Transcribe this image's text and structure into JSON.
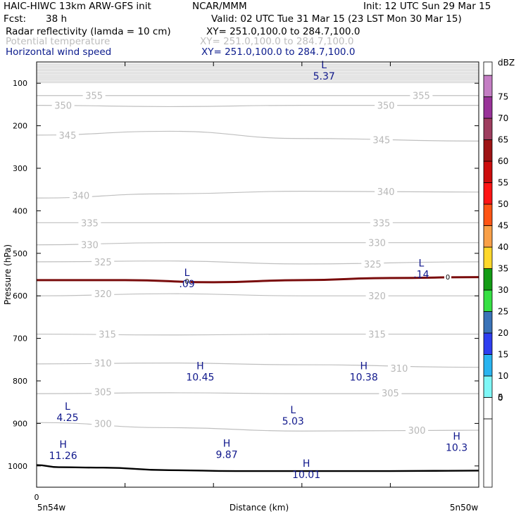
{
  "header": {
    "model": "HAIC-HIWC 13km ARW-GFS init",
    "org": "NCAR/MMM",
    "init": "Init: 12 UTC Sun 29 Mar 15",
    "fcst_label": "Fcst:",
    "fcst_value": "38 h",
    "valid": "Valid: 02 UTC Tue 31 Mar 15 (23 LST Mon 30 Mar 15)"
  },
  "fields": [
    {
      "label": "Radar reflectivity (lamda = 10 cm)",
      "xy": "XY= 251.0,100.0 to 284.7,100.0",
      "color": "#000000"
    },
    {
      "label": "Potential temperature",
      "xy": "XY= 251.0,100.0 to 284.7,100.0",
      "color": "#bdbdbd"
    },
    {
      "label": "Horizontal wind speed",
      "xy": "XY= 251.0,100.0 to 284.7,100.0",
      "color": "#0a1a8c"
    }
  ],
  "chart_data": {
    "type": "cross-section",
    "xlabel": "Distance (km)",
    "ylabel": "Pressure (hPa)",
    "x_start_label": "0",
    "x_end_labels": [
      "5n54w",
      "5n50w"
    ],
    "ylim": [
      50,
      1050
    ],
    "y_scale": "linear",
    "y_ticks": [
      100,
      200,
      300,
      400,
      500,
      600,
      700,
      800,
      900,
      1000
    ],
    "x_tick_count": 5,
    "theta_contours": [
      {
        "level": "355",
        "x": [
          0,
          0.3,
          0.6,
          1
        ],
        "p": [
          129,
          129,
          129,
          129
        ],
        "labels": [
          [
            0.13,
            129
          ],
          [
            0.87,
            129
          ]
        ]
      },
      {
        "level": "350",
        "x": [
          0,
          0.3,
          0.6,
          1
        ],
        "p": [
          152,
          155,
          152,
          152
        ],
        "labels": [
          [
            0.06,
            152
          ],
          [
            0.79,
            152
          ]
        ]
      },
      {
        "level": "345",
        "x": [
          0,
          0.3,
          0.6,
          1
        ],
        "p": [
          222,
          213,
          230,
          236
        ],
        "labels": [
          [
            0.07,
            222
          ],
          [
            0.78,
            233
          ]
        ]
      },
      {
        "level": "340",
        "x": [
          0,
          0.3,
          0.6,
          1
        ],
        "p": [
          370,
          360,
          354,
          356
        ],
        "labels": [
          [
            0.1,
            364
          ],
          [
            0.79,
            355
          ]
        ]
      },
      {
        "level": "335",
        "x": [
          0,
          0.3,
          0.6,
          1
        ],
        "p": [
          428,
          428,
          428,
          428
        ],
        "labels": [
          [
            0.12,
            428
          ],
          [
            0.78,
            428
          ]
        ]
      },
      {
        "level": "330",
        "x": [
          0,
          0.3,
          0.6,
          1
        ],
        "p": [
          480,
          475,
          475,
          475
        ],
        "labels": [
          [
            0.12,
            480
          ],
          [
            0.77,
            475
          ]
        ]
      },
      {
        "level": "325",
        "x": [
          0,
          0.3,
          0.6,
          1
        ],
        "p": [
          520,
          518,
          525,
          520
        ],
        "labels": [
          [
            0.15,
            520
          ],
          [
            0.76,
            525
          ]
        ]
      },
      {
        "level": "320",
        "x": [
          0,
          0.3,
          0.6,
          1
        ],
        "p": [
          600,
          595,
          600,
          600
        ],
        "labels": [
          [
            0.15,
            595
          ],
          [
            0.77,
            600
          ]
        ]
      },
      {
        "level": "315",
        "x": [
          0,
          0.3,
          0.6,
          1
        ],
        "p": [
          690,
          692,
          690,
          690
        ],
        "labels": [
          [
            0.16,
            690
          ],
          [
            0.77,
            690
          ]
        ]
      },
      {
        "level": "310",
        "x": [
          0,
          0.3,
          0.6,
          1
        ],
        "p": [
          760,
          758,
          762,
          768
        ],
        "labels": [
          [
            0.15,
            758
          ],
          [
            0.82,
            770
          ]
        ]
      },
      {
        "level": "305",
        "x": [
          0,
          0.3,
          0.6,
          1
        ],
        "p": [
          830,
          828,
          830,
          830
        ],
        "labels": [
          [
            0.15,
            826
          ],
          [
            0.8,
            828
          ]
        ]
      },
      {
        "level": "300",
        "x": [
          0,
          0.3,
          0.6,
          1
        ],
        "p": [
          898,
          910,
          918,
          916
        ],
        "labels": [
          [
            0.15,
            900
          ],
          [
            0.86,
            916
          ]
        ]
      }
    ],
    "reflectivity_zero_contour": {
      "level": "0",
      "x": [
        0,
        0.2,
        0.4,
        0.6,
        0.8,
        1
      ],
      "p": [
        563,
        563,
        568,
        563,
        558,
        556
      ],
      "labels": [
        [
          0.34,
          565
        ],
        [
          0.93,
          555
        ]
      ]
    },
    "terrain": {
      "x": [
        0,
        0.05,
        0.15,
        0.3,
        0.45,
        0.6,
        0.8,
        1
      ],
      "p": [
        998,
        1003,
        1004,
        1010,
        1012,
        1012,
        1012,
        1011
      ]
    },
    "wind_extrema": [
      {
        "type": "L",
        "value": "5.37",
        "x": 0.65,
        "p": 65
      },
      {
        "type": "L",
        "value": ".09",
        "x": 0.34,
        "p": 553
      },
      {
        "type": "L",
        "value": ".14",
        "x": 0.87,
        "p": 531
      },
      {
        "type": "H",
        "value": "10.45",
        "x": 0.37,
        "p": 773
      },
      {
        "type": "H",
        "value": "10.38",
        "x": 0.74,
        "p": 773
      },
      {
        "type": "L",
        "value": "4.25",
        "x": 0.07,
        "p": 868
      },
      {
        "type": "L",
        "value": "5.03",
        "x": 0.58,
        "p": 876
      },
      {
        "type": "H",
        "value": "11.26",
        "x": 0.06,
        "p": 957
      },
      {
        "type": "H",
        "value": "9.87",
        "x": 0.43,
        "p": 955
      },
      {
        "type": "H",
        "value": "10.3",
        "x": 0.95,
        "p": 938
      },
      {
        "type": "H",
        "value": "10.01",
        "x": 0.61,
        "p": 1002
      }
    ],
    "colorbar": {
      "unit": "dBZ",
      "levels": [
        "0",
        "5",
        "10",
        "15",
        "20",
        "25",
        "30",
        "35",
        "40",
        "45",
        "50",
        "55",
        "60",
        "65",
        "70",
        "75"
      ],
      "colors": [
        "#ffffff",
        "#7ff7f7",
        "#29b4f0",
        "#2e3ef0",
        "#3a73b8",
        "#36e044",
        "#139c15",
        "#ffd82c",
        "#f9a048",
        "#ff5414",
        "#ff1414",
        "#cc0c0c",
        "#9e1314",
        "#9e3d5f",
        "#993399",
        "#c47ec4"
      ]
    }
  }
}
